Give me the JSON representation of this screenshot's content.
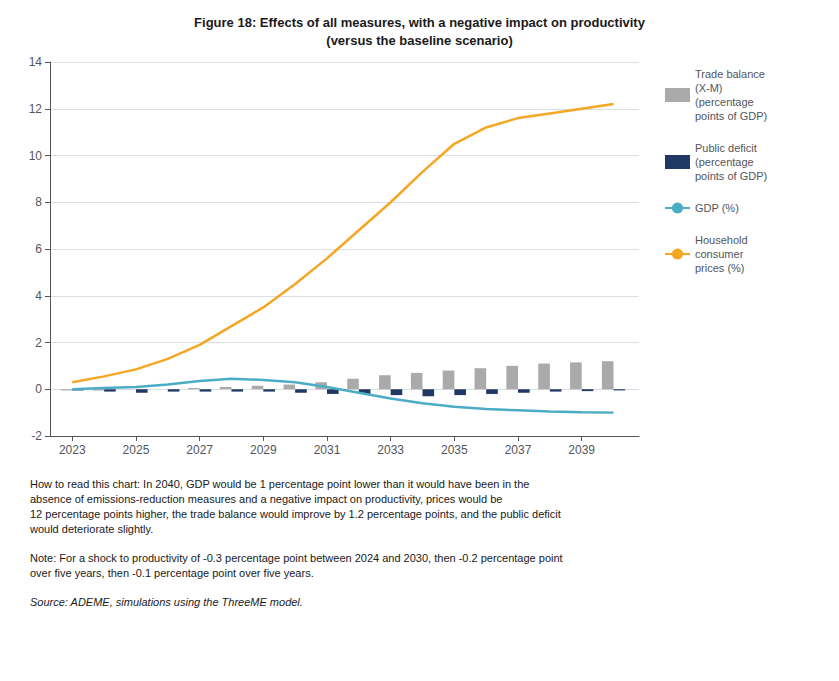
{
  "chart_data": {
    "type": "bar",
    "title": "Figure 18: Effects of all measures, with a negative impact on productivity\n(versus the baseline scenario)",
    "x": [
      2023,
      2024,
      2025,
      2026,
      2027,
      2028,
      2029,
      2030,
      2031,
      2032,
      2033,
      2034,
      2035,
      2036,
      2037,
      2038,
      2039,
      2040
    ],
    "xlim": [
      2022.3,
      2040.8
    ],
    "xticks": [
      2023,
      2025,
      2027,
      2029,
      2031,
      2033,
      2035,
      2037,
      2039
    ],
    "ylim": [
      -2,
      14
    ],
    "yticks": [
      -2,
      0,
      2,
      4,
      6,
      8,
      10,
      12,
      14
    ],
    "grid": true,
    "legend": "right",
    "series": [
      {
        "name": "Trade balance\n(X-M)\n(percentage\npoints of GDP)",
        "type": "bar",
        "color": "#AAAAAA",
        "values": [
          -0.05,
          -0.05,
          0.0,
          0.0,
          0.05,
          0.1,
          0.15,
          0.2,
          0.3,
          0.45,
          0.6,
          0.7,
          0.8,
          0.9,
          1.0,
          1.1,
          1.15,
          1.2
        ]
      },
      {
        "name": "Public deficit\n(percentage\npoints of GDP)",
        "type": "bar",
        "color": "#1F3864",
        "values": [
          -0.05,
          -0.1,
          -0.15,
          -0.1,
          -0.1,
          -0.1,
          -0.1,
          -0.15,
          -0.2,
          -0.2,
          -0.25,
          -0.3,
          -0.25,
          -0.2,
          -0.15,
          -0.1,
          -0.08,
          -0.05
        ]
      },
      {
        "name": "GDP (%)",
        "type": "line",
        "color": "#4BACC6",
        "values": [
          0.0,
          0.05,
          0.1,
          0.2,
          0.35,
          0.45,
          0.4,
          0.3,
          0.1,
          -0.15,
          -0.4,
          -0.6,
          -0.75,
          -0.85,
          -0.9,
          -0.95,
          -0.98,
          -1.0
        ]
      },
      {
        "name": "Household\nconsumer\nprices (%)",
        "type": "line",
        "color": "#F5A623",
        "values": [
          0.3,
          0.55,
          0.85,
          1.3,
          1.9,
          2.7,
          3.5,
          4.5,
          5.6,
          6.8,
          8.0,
          9.3,
          10.5,
          11.2,
          11.6,
          11.8,
          12.0,
          12.2
        ]
      }
    ],
    "annotations": [
      "How to read this chart: In 2040, GDP would be 1 percentage point lower than it would have been in the\nabsence of emissions-reduction measures and a negative impact on productivity, prices would be\n12 percentage points higher, the trade balance would improve by 1.2 percentage points, and the public deficit\nwould deteriorate slightly.",
      "Note: For a shock to productivity of -0.3 percentage point between 2024 and 2030, then -0.2 percentage point\nover five years, then -0.1 percentage point over five years.",
      "Source: ADEME, simulations using the ThreeME model."
    ]
  }
}
